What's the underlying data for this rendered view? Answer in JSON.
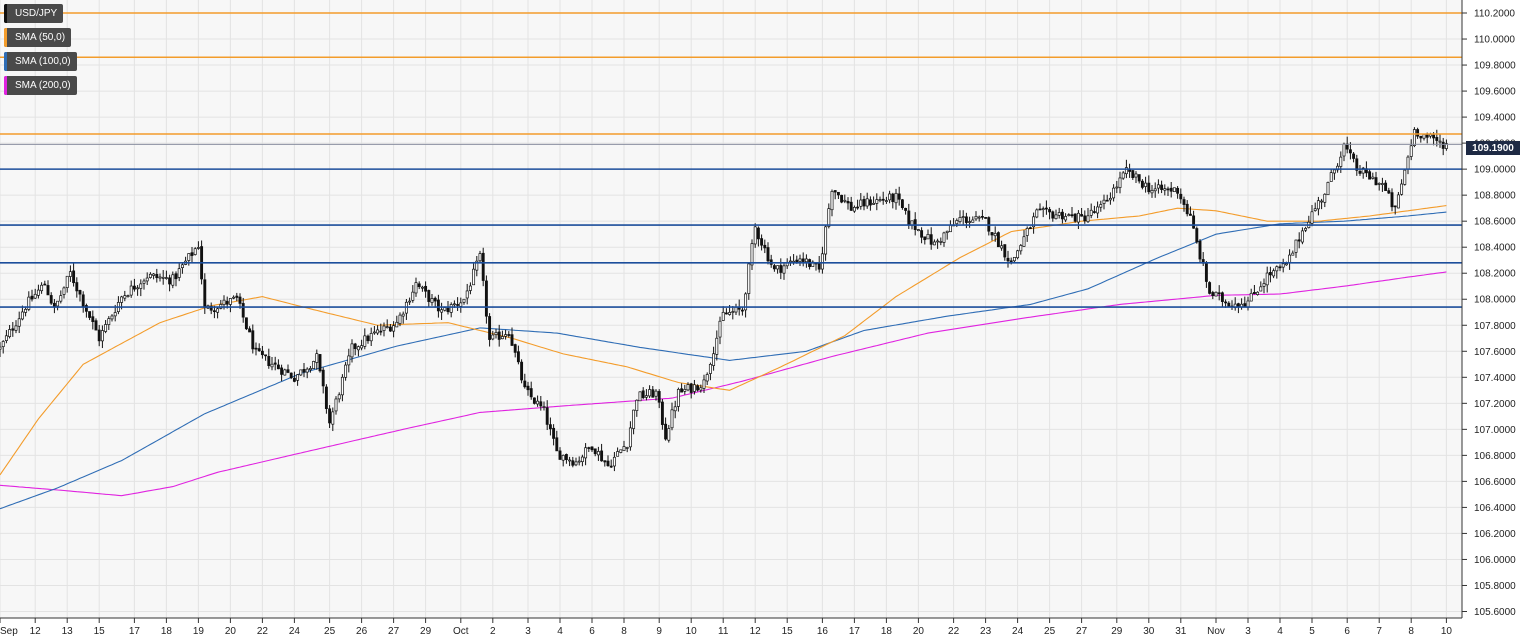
{
  "legend": [
    {
      "label": "USD/JPY",
      "color": "#111111"
    },
    {
      "label": "SMA (50,0)",
      "color": "#f39c2b"
    },
    {
      "label": "SMA (100,0)",
      "color": "#2f6db5"
    },
    {
      "label": "SMA (200,0)",
      "color": "#e023e0"
    }
  ],
  "last_price": "109.1900",
  "chart_data": {
    "type": "candlestick",
    "instrument": "USD/JPY",
    "ylim": [
      105.55,
      110.3
    ],
    "y_ticks": [
      "110.2000",
      "110.0000",
      "109.8000",
      "109.6000",
      "109.4000",
      "109.2000",
      "109.0000",
      "108.8000",
      "108.6000",
      "108.4000",
      "108.2000",
      "108.0000",
      "107.8000",
      "107.6000",
      "107.4000",
      "107.2000",
      "107.0000",
      "106.8000",
      "106.6000",
      "106.4000",
      "106.2000",
      "106.0000",
      "105.8000",
      "105.6000"
    ],
    "x_ticks": [
      {
        "label": "Sep",
        "i": 0
      },
      {
        "label": "12",
        "i": 11
      },
      {
        "label": "13",
        "i": 21
      },
      {
        "label": "15",
        "i": 31
      },
      {
        "label": "17",
        "i": 42
      },
      {
        "label": "18",
        "i": 52
      },
      {
        "label": "19",
        "i": 62
      },
      {
        "label": "20",
        "i": 72
      },
      {
        "label": "22",
        "i": 82
      },
      {
        "label": "24",
        "i": 92
      },
      {
        "label": "25",
        "i": 103
      },
      {
        "label": "26",
        "i": 113
      },
      {
        "label": "27",
        "i": 123
      },
      {
        "label": "29",
        "i": 133
      },
      {
        "label": "Oct",
        "i": 144
      },
      {
        "label": "2",
        "i": 154
      },
      {
        "label": "3",
        "i": 165
      },
      {
        "label": "4",
        "i": 175
      },
      {
        "label": "6",
        "i": 185
      },
      {
        "label": "8",
        "i": 195
      },
      {
        "label": "9",
        "i": 206
      },
      {
        "label": "10",
        "i": 216
      },
      {
        "label": "11",
        "i": 226
      },
      {
        "label": "12",
        "i": 236
      },
      {
        "label": "15",
        "i": 246
      },
      {
        "label": "16",
        "i": 257
      },
      {
        "label": "17",
        "i": 267
      },
      {
        "label": "18",
        "i": 277
      },
      {
        "label": "20",
        "i": 287
      },
      {
        "label": "22",
        "i": 298
      },
      {
        "label": "23",
        "i": 308
      },
      {
        "label": "24",
        "i": 318
      },
      {
        "label": "25",
        "i": 328
      },
      {
        "label": "27",
        "i": 338
      },
      {
        "label": "29",
        "i": 349
      },
      {
        "label": "30",
        "i": 359
      },
      {
        "label": "31",
        "i": 369
      },
      {
        "label": "Nov",
        "i": 380
      },
      {
        "label": "3",
        "i": 390
      },
      {
        "label": "4",
        "i": 400
      },
      {
        "label": "5",
        "i": 410
      },
      {
        "label": "6",
        "i": 421
      },
      {
        "label": "7",
        "i": 431
      },
      {
        "label": "8",
        "i": 441
      },
      {
        "label": "10",
        "i": 452
      }
    ],
    "anchors": [
      {
        "i": 0,
        "v": 107.62
      },
      {
        "i": 8,
        "v": 107.95
      },
      {
        "i": 14,
        "v": 108.12
      },
      {
        "i": 17,
        "v": 107.92
      },
      {
        "i": 22,
        "v": 108.2
      },
      {
        "i": 31,
        "v": 107.7
      },
      {
        "i": 38,
        "v": 108.02
      },
      {
        "i": 46,
        "v": 108.18
      },
      {
        "i": 54,
        "v": 108.15
      },
      {
        "i": 62,
        "v": 108.42
      },
      {
        "i": 64,
        "v": 107.92
      },
      {
        "i": 74,
        "v": 108.0
      },
      {
        "i": 80,
        "v": 107.58
      },
      {
        "i": 92,
        "v": 107.4
      },
      {
        "i": 99,
        "v": 107.55
      },
      {
        "i": 103,
        "v": 107.05
      },
      {
        "i": 110,
        "v": 107.62
      },
      {
        "i": 116,
        "v": 107.72
      },
      {
        "i": 124,
        "v": 107.82
      },
      {
        "i": 130,
        "v": 108.12
      },
      {
        "i": 138,
        "v": 107.9
      },
      {
        "i": 145,
        "v": 108.0
      },
      {
        "i": 150,
        "v": 108.32
      },
      {
        "i": 153,
        "v": 107.68
      },
      {
        "i": 159,
        "v": 107.76
      },
      {
        "i": 164,
        "v": 107.3
      },
      {
        "i": 170,
        "v": 107.14
      },
      {
        "i": 174,
        "v": 106.82
      },
      {
        "i": 180,
        "v": 106.75
      },
      {
        "i": 185,
        "v": 106.88
      },
      {
        "i": 190,
        "v": 106.72
      },
      {
        "i": 196,
        "v": 106.9
      },
      {
        "i": 199,
        "v": 107.25
      },
      {
        "i": 205,
        "v": 107.28
      },
      {
        "i": 208,
        "v": 106.95
      },
      {
        "i": 212,
        "v": 107.28
      },
      {
        "i": 220,
        "v": 107.36
      },
      {
        "i": 226,
        "v": 107.88
      },
      {
        "i": 232,
        "v": 107.92
      },
      {
        "i": 236,
        "v": 108.55
      },
      {
        "i": 242,
        "v": 108.22
      },
      {
        "i": 250,
        "v": 108.32
      },
      {
        "i": 256,
        "v": 108.22
      },
      {
        "i": 260,
        "v": 108.86
      },
      {
        "i": 266,
        "v": 108.7
      },
      {
        "i": 272,
        "v": 108.75
      },
      {
        "i": 280,
        "v": 108.78
      },
      {
        "i": 284,
        "v": 108.6
      },
      {
        "i": 292,
        "v": 108.42
      },
      {
        "i": 300,
        "v": 108.62
      },
      {
        "i": 308,
        "v": 108.6
      },
      {
        "i": 316,
        "v": 108.28
      },
      {
        "i": 324,
        "v": 108.66
      },
      {
        "i": 332,
        "v": 108.65
      },
      {
        "i": 338,
        "v": 108.62
      },
      {
        "i": 344,
        "v": 108.7
      },
      {
        "i": 352,
        "v": 108.98
      },
      {
        "i": 360,
        "v": 108.84
      },
      {
        "i": 368,
        "v": 108.84
      },
      {
        "i": 372,
        "v": 108.62
      },
      {
        "i": 378,
        "v": 108.05
      },
      {
        "i": 384,
        "v": 107.97
      },
      {
        "i": 390,
        "v": 107.98
      },
      {
        "i": 396,
        "v": 108.18
      },
      {
        "i": 402,
        "v": 108.26
      },
      {
        "i": 408,
        "v": 108.58
      },
      {
        "i": 414,
        "v": 108.82
      },
      {
        "i": 420,
        "v": 109.18
      },
      {
        "i": 424,
        "v": 109.0
      },
      {
        "i": 432,
        "v": 108.88
      },
      {
        "i": 436,
        "v": 108.68
      },
      {
        "i": 442,
        "v": 109.3
      },
      {
        "i": 448,
        "v": 109.22
      },
      {
        "i": 452,
        "v": 109.19
      }
    ],
    "sma50": [
      {
        "i": 0,
        "v": 106.65
      },
      {
        "i": 12,
        "v": 107.08
      },
      {
        "i": 26,
        "v": 107.5
      },
      {
        "i": 50,
        "v": 107.82
      },
      {
        "i": 66,
        "v": 107.95
      },
      {
        "i": 82,
        "v": 108.02
      },
      {
        "i": 98,
        "v": 107.92
      },
      {
        "i": 118,
        "v": 107.8
      },
      {
        "i": 140,
        "v": 107.82
      },
      {
        "i": 160,
        "v": 107.7
      },
      {
        "i": 176,
        "v": 107.58
      },
      {
        "i": 196,
        "v": 107.48
      },
      {
        "i": 212,
        "v": 107.36
      },
      {
        "i": 228,
        "v": 107.3
      },
      {
        "i": 244,
        "v": 107.48
      },
      {
        "i": 264,
        "v": 107.72
      },
      {
        "i": 280,
        "v": 108.02
      },
      {
        "i": 300,
        "v": 108.32
      },
      {
        "i": 316,
        "v": 108.52
      },
      {
        "i": 338,
        "v": 108.6
      },
      {
        "i": 356,
        "v": 108.64
      },
      {
        "i": 368,
        "v": 108.7
      },
      {
        "i": 380,
        "v": 108.68
      },
      {
        "i": 396,
        "v": 108.6
      },
      {
        "i": 412,
        "v": 108.6
      },
      {
        "i": 428,
        "v": 108.64
      },
      {
        "i": 440,
        "v": 108.68
      },
      {
        "i": 452,
        "v": 108.72
      }
    ],
    "sma100": [
      {
        "i": 0,
        "v": 106.39
      },
      {
        "i": 18,
        "v": 106.55
      },
      {
        "i": 38,
        "v": 106.76
      },
      {
        "i": 64,
        "v": 107.12
      },
      {
        "i": 94,
        "v": 107.43
      },
      {
        "i": 124,
        "v": 107.64
      },
      {
        "i": 150,
        "v": 107.78
      },
      {
        "i": 174,
        "v": 107.74
      },
      {
        "i": 200,
        "v": 107.63
      },
      {
        "i": 228,
        "v": 107.53
      },
      {
        "i": 252,
        "v": 107.6
      },
      {
        "i": 270,
        "v": 107.76
      },
      {
        "i": 296,
        "v": 107.87
      },
      {
        "i": 322,
        "v": 107.96
      },
      {
        "i": 340,
        "v": 108.08
      },
      {
        "i": 362,
        "v": 108.32
      },
      {
        "i": 380,
        "v": 108.5
      },
      {
        "i": 400,
        "v": 108.58
      },
      {
        "i": 420,
        "v": 108.6
      },
      {
        "i": 440,
        "v": 108.64
      },
      {
        "i": 452,
        "v": 108.67
      }
    ],
    "sma200": [
      {
        "i": 0,
        "v": 106.57
      },
      {
        "i": 20,
        "v": 106.53
      },
      {
        "i": 38,
        "v": 106.49
      },
      {
        "i": 54,
        "v": 106.56
      },
      {
        "i": 68,
        "v": 106.67
      },
      {
        "i": 96,
        "v": 106.83
      },
      {
        "i": 126,
        "v": 107.0
      },
      {
        "i": 150,
        "v": 107.13
      },
      {
        "i": 176,
        "v": 107.18
      },
      {
        "i": 210,
        "v": 107.24
      },
      {
        "i": 232,
        "v": 107.37
      },
      {
        "i": 260,
        "v": 107.56
      },
      {
        "i": 290,
        "v": 107.74
      },
      {
        "i": 324,
        "v": 107.87
      },
      {
        "i": 350,
        "v": 107.96
      },
      {
        "i": 380,
        "v": 108.03
      },
      {
        "i": 400,
        "v": 108.04
      },
      {
        "i": 420,
        "v": 108.1
      },
      {
        "i": 440,
        "v": 108.17
      },
      {
        "i": 452,
        "v": 108.21
      }
    ],
    "resistance_levels": [
      110.2,
      109.86,
      109.27
    ],
    "support_levels": [
      109.0,
      108.57,
      108.28,
      107.94
    ],
    "last_price_line": 109.19,
    "grid": true
  }
}
